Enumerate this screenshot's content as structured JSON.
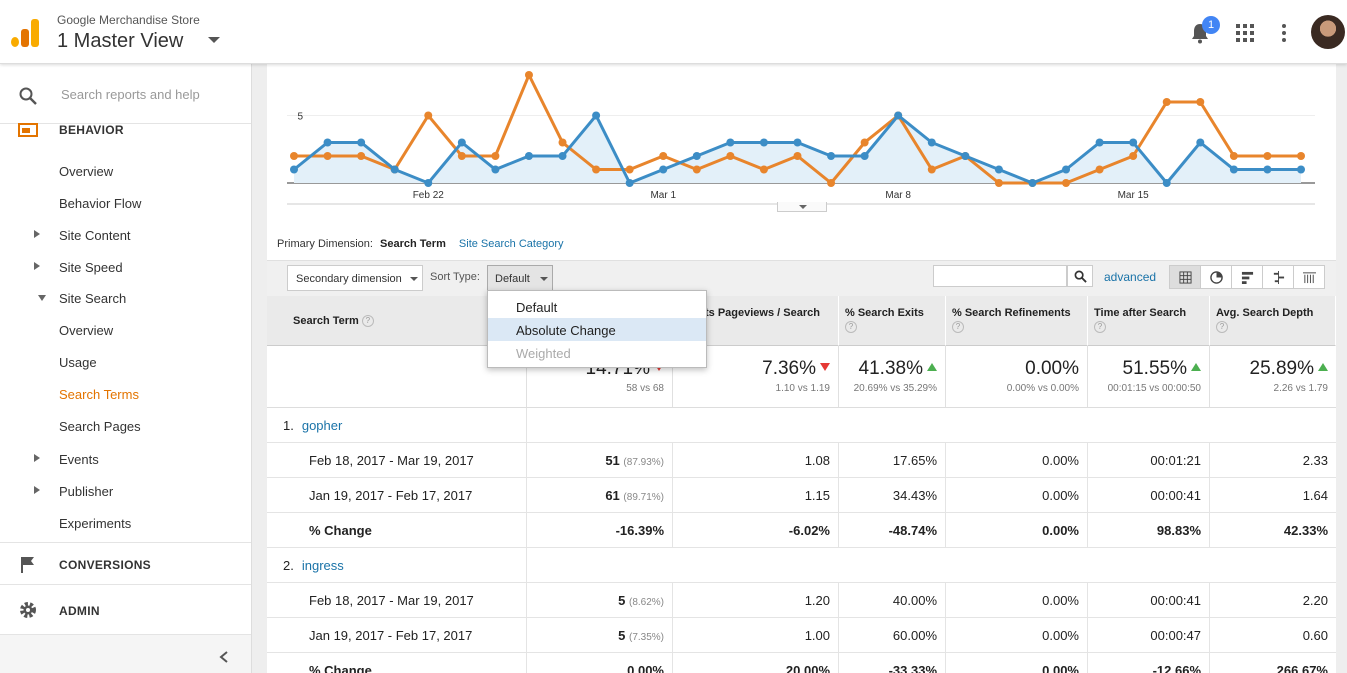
{
  "header": {
    "account": "Google Merchandise Store",
    "view": "1 Master View",
    "notification_count": "1"
  },
  "sidebar": {
    "search_placeholder": "Search reports and help",
    "behavior_label": "BEHAVIOR",
    "items": [
      {
        "label": "Overview"
      },
      {
        "label": "Behavior Flow"
      },
      {
        "label": "Site Content"
      },
      {
        "label": "Site Speed"
      },
      {
        "label": "Site Search"
      },
      {
        "label": "Overview"
      },
      {
        "label": "Usage"
      },
      {
        "label": "Search Terms"
      },
      {
        "label": "Search Pages"
      },
      {
        "label": "Events"
      },
      {
        "label": "Publisher"
      },
      {
        "label": "Experiments"
      }
    ],
    "conversions_label": "CONVERSIONS",
    "admin_label": "ADMIN"
  },
  "chart_data": {
    "type": "line",
    "x_ticks": [
      "Feb 22",
      "Mar 1",
      "Mar 8",
      "Mar 15"
    ],
    "y_ticks": [
      "5"
    ],
    "series": [
      {
        "color": "#3c8dc6",
        "values": [
          1,
          3,
          3,
          1,
          0,
          3,
          1,
          2,
          2,
          5,
          0,
          1,
          2,
          3,
          3,
          3,
          2,
          2,
          5,
          3,
          2,
          1,
          0,
          1,
          3,
          3,
          0,
          3,
          1,
          1,
          1
        ]
      },
      {
        "color": "#e8852c",
        "values": [
          2,
          2,
          2,
          1,
          5,
          2,
          2,
          8,
          3,
          1,
          1,
          2,
          1,
          2,
          1,
          2,
          0,
          3,
          5,
          1,
          2,
          0,
          0,
          0,
          1,
          2,
          6,
          6,
          2,
          2,
          2
        ]
      }
    ]
  },
  "primary_dimension": {
    "label": "Primary Dimension:",
    "active": "Search Term",
    "other": "Site Search Category"
  },
  "toolbar": {
    "secondary_dimension": "Secondary dimension",
    "sort_type_label": "Sort Type:",
    "sort_type_value": "Default",
    "advanced": "advanced"
  },
  "sort_dropdown": {
    "options": [
      "Default",
      "Absolute Change",
      "Weighted"
    ]
  },
  "table": {
    "headers": {
      "search_term": "Search Term",
      "pageviews": "ts Pageviews / Search",
      "exits": "% Search Exits",
      "refinements": "% Search Refinements",
      "time_after": "Time after Search",
      "depth": "Avg. Search Depth"
    },
    "summary": [
      {
        "big": "14.71%",
        "small": "58 vs 68",
        "trend": "down"
      },
      {
        "big": "7.36%",
        "small": "1.10 vs 1.19",
        "trend": "down"
      },
      {
        "big": "41.38%",
        "small": "20.69% vs 35.29%",
        "trend": "up"
      },
      {
        "big": "0.00%",
        "small": "0.00% vs 0.00%",
        "trend": ""
      },
      {
        "big": "51.55%",
        "small": "00:01:15 vs 00:00:50",
        "trend": "up"
      },
      {
        "big": "25.89%",
        "small": "2.26 vs 1.79",
        "trend": "up"
      }
    ],
    "groups": [
      {
        "index": "1.",
        "term": "gopher",
        "rows": [
          {
            "label": "Feb 18, 2017 - Mar 19, 2017",
            "uniq": "51",
            "uniq_pct": "(87.93%)",
            "pv": "1.08",
            "exits": "17.65%",
            "ref": "0.00%",
            "time": "00:01:21",
            "depth": "2.33"
          },
          {
            "label": "Jan 19, 2017 - Feb 17, 2017",
            "uniq": "61",
            "uniq_pct": "(89.71%)",
            "pv": "1.15",
            "exits": "34.43%",
            "ref": "0.00%",
            "time": "00:00:41",
            "depth": "1.64"
          },
          {
            "label": "% Change",
            "uniq": "-16.39%",
            "uniq_pct": "",
            "pv": "-6.02%",
            "exits": "-48.74%",
            "ref": "0.00%",
            "time": "98.83%",
            "depth": "42.33%"
          }
        ]
      },
      {
        "index": "2.",
        "term": "ingress",
        "rows": [
          {
            "label": "Feb 18, 2017 - Mar 19, 2017",
            "uniq": "5",
            "uniq_pct": "(8.62%)",
            "pv": "1.20",
            "exits": "40.00%",
            "ref": "0.00%",
            "time": "00:00:41",
            "depth": "2.20"
          },
          {
            "label": "Jan 19, 2017 - Feb 17, 2017",
            "uniq": "5",
            "uniq_pct": "(7.35%)",
            "pv": "1.00",
            "exits": "60.00%",
            "ref": "0.00%",
            "time": "00:00:47",
            "depth": "0.60"
          },
          {
            "label": "% Change",
            "uniq": "0.00%",
            "uniq_pct": "",
            "pv": "20.00%",
            "exits": "-33.33%",
            "ref": "0.00%",
            "time": "-12.66%",
            "depth": "266.67%"
          }
        ]
      }
    ]
  }
}
